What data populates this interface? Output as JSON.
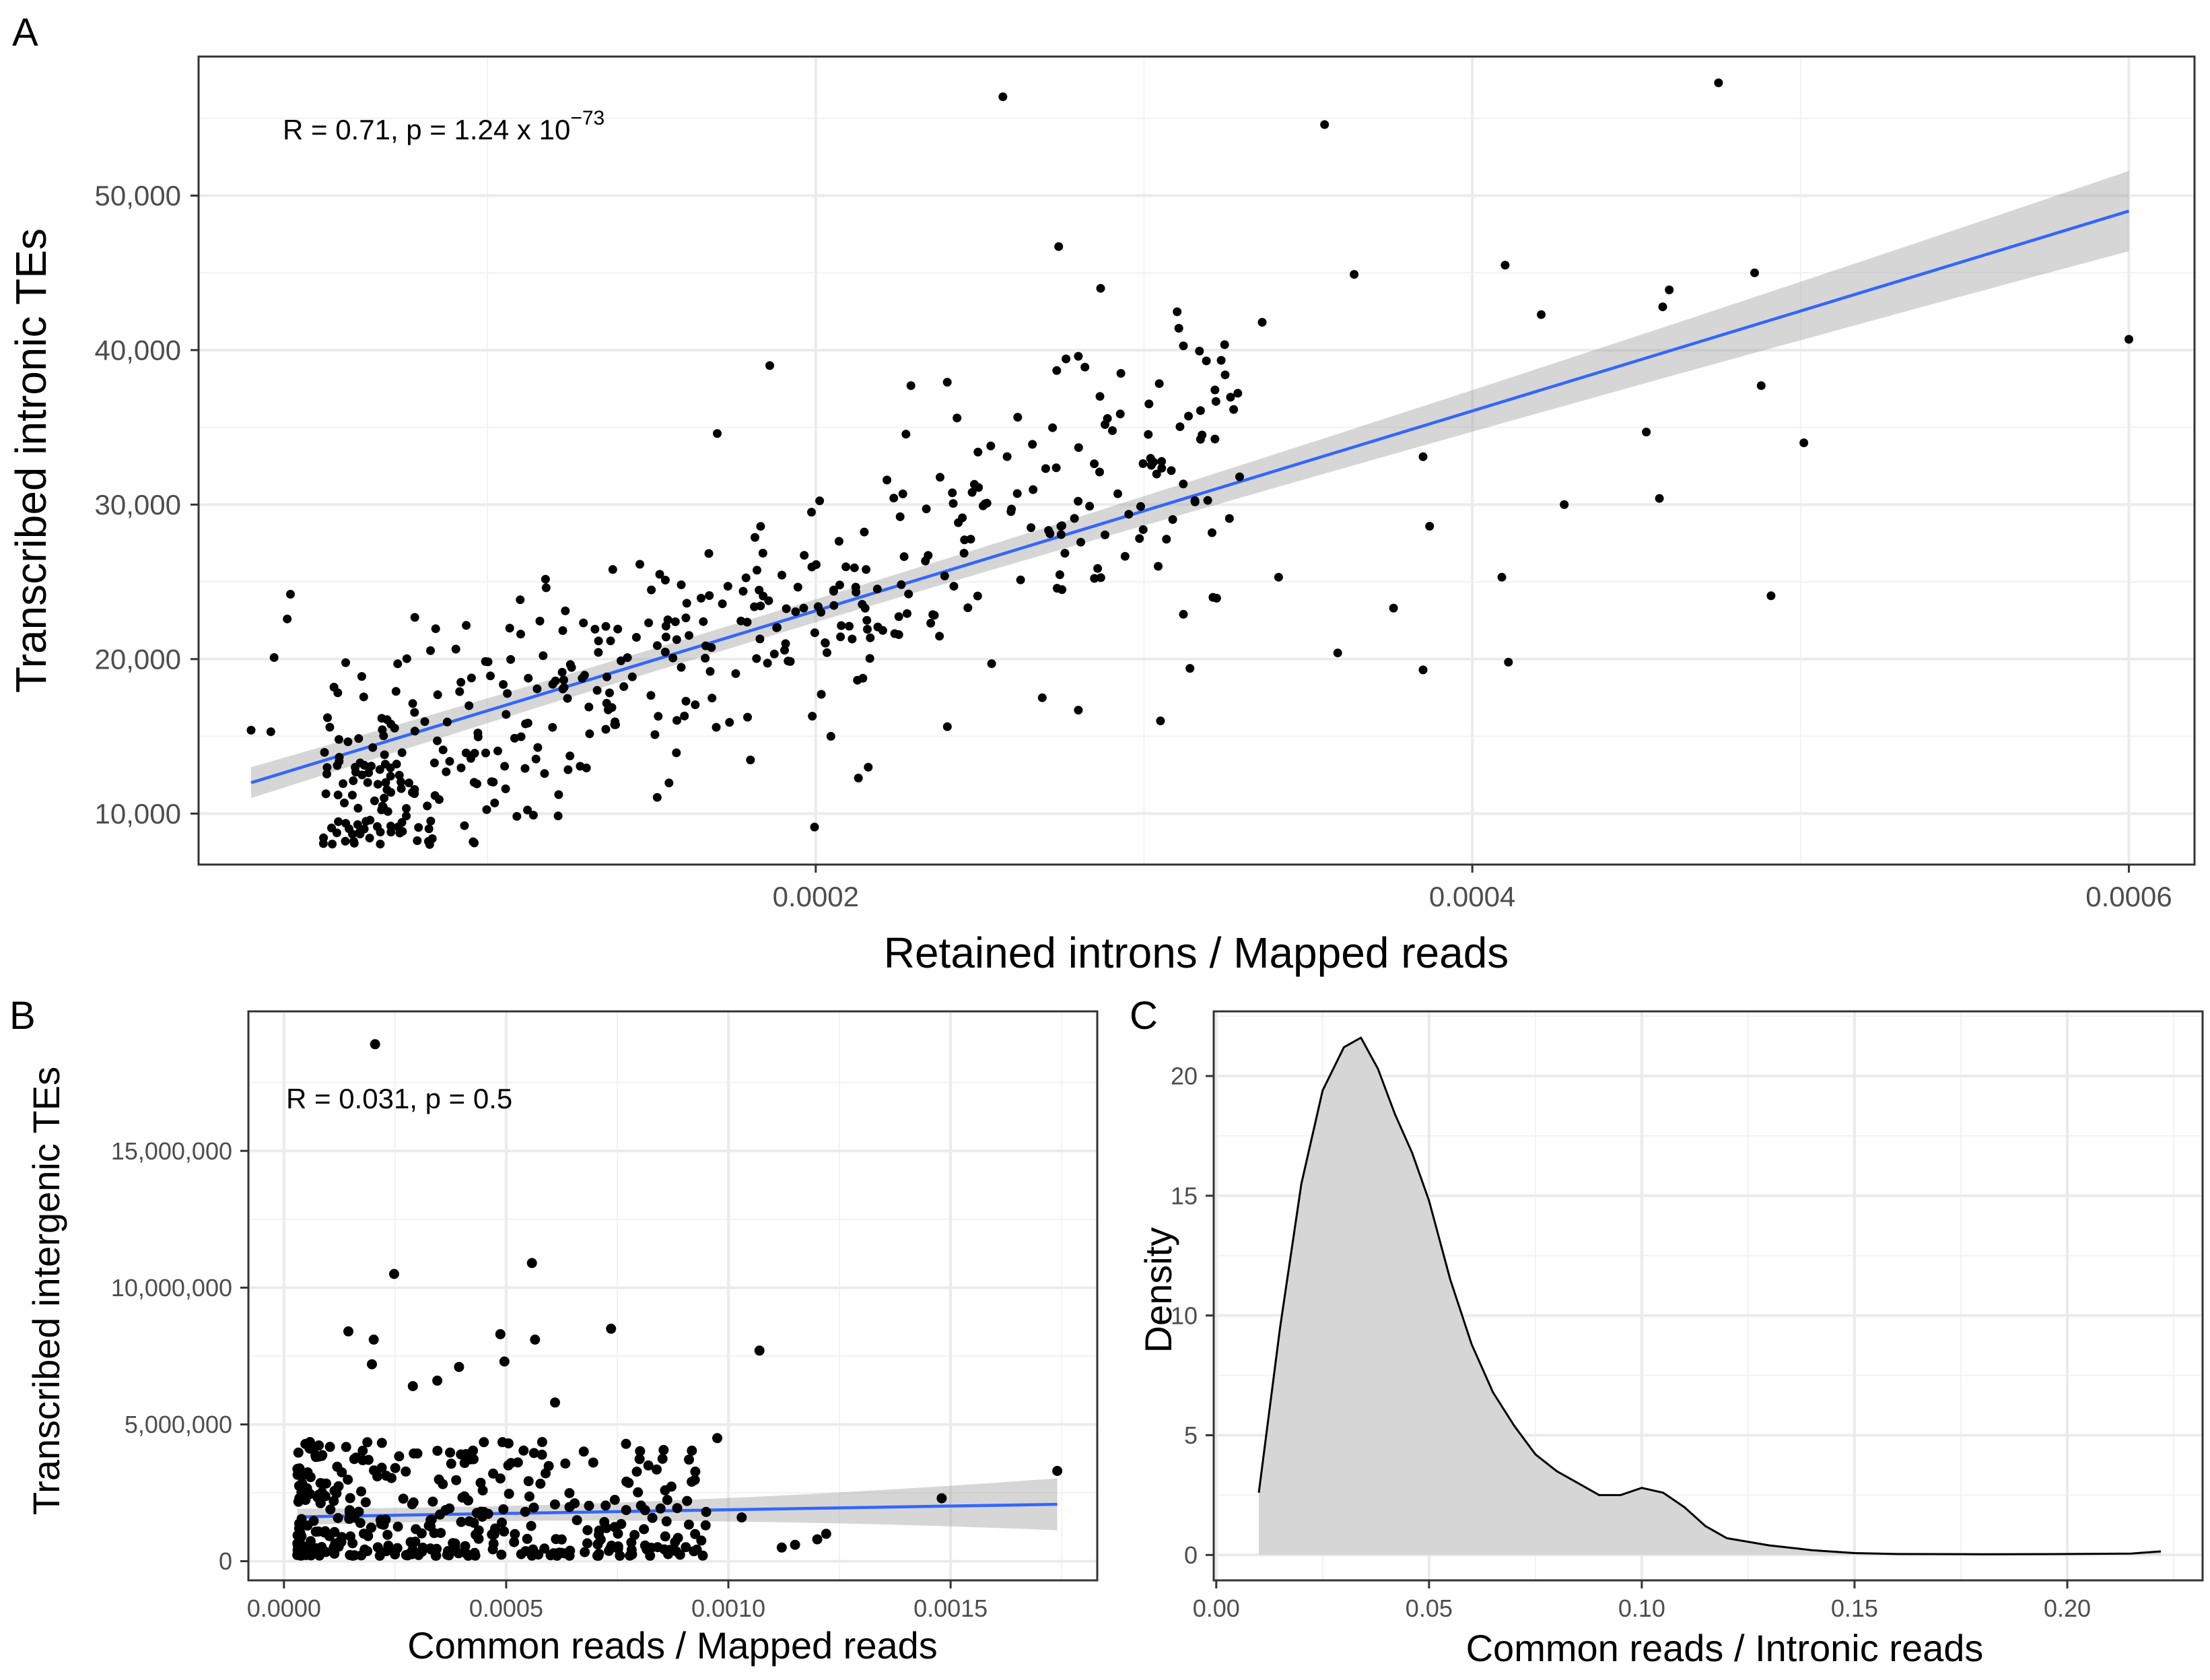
{
  "panel_labels": [
    "A",
    "B",
    "C"
  ],
  "chart_data": [
    {
      "panel": "A",
      "type": "scatter",
      "xlabel": "Retained introns / Mapped reads",
      "ylabel": "Transcribed intronic TEs",
      "xlim": [
        1.2e-05,
        0.00062
      ],
      "ylim": [
        6700,
        59000
      ],
      "xticks": [
        0.0002,
        0.0004,
        0.0006
      ],
      "xtick_labels": [
        "0.0002",
        "0.0004",
        "0.0006"
      ],
      "yticks": [
        10000,
        20000,
        30000,
        40000,
        50000
      ],
      "ytick_labels": [
        "10,000",
        "20,000",
        "30,000",
        "40,000",
        "50,000"
      ],
      "annotation": {
        "text": "R = 0.71, p = 1.24 x 10",
        "exponent": "−73"
      },
      "fit": {
        "x0": 2.8e-05,
        "y0": 12000,
        "x1": 0.0006,
        "y1": 49000,
        "ci_start": 1000,
        "ci_end": 2600,
        "ci_min": 550
      },
      "highlight_points": [
        [
          2.8e-05,
          15400
        ],
        [
          3.4e-05,
          15300
        ],
        [
          3.5e-05,
          20100
        ],
        [
          4e-05,
          24200
        ],
        [
          3.9e-05,
          22600
        ],
        [
          6.3e-05,
          9500
        ],
        [
          8.2e-05,
          8200
        ],
        [
          7.9e-05,
          9100
        ],
        [
          9.6e-05,
          8100
        ],
        [
          0.000114,
          9900
        ],
        [
          0.00017,
          34600
        ],
        [
          0.000186,
          39000
        ],
        [
          0.000257,
          56400
        ],
        [
          0.000229,
          37700
        ],
        [
          0.000274,
          46700
        ],
        [
          0.00028,
          39600
        ],
        [
          0.000282,
          38900
        ],
        [
          0.00028,
          16700
        ],
        [
          0.000269,
          17500
        ],
        [
          0.000213,
          12300
        ],
        [
          0.000216,
          13000
        ],
        [
          0.000355,
          54600
        ],
        [
          0.000364,
          44900
        ],
        [
          0.000336,
          41800
        ],
        [
          0.000341,
          25300
        ],
        [
          0.000359,
          20400
        ],
        [
          0.000376,
          23300
        ],
        [
          0.000385,
          19300
        ],
        [
          0.00041,
          45500
        ],
        [
          0.000421,
          42300
        ],
        [
          0.000409,
          25300
        ],
        [
          0.000411,
          19800
        ],
        [
          0.000428,
          30000
        ],
        [
          0.000453,
          34700
        ],
        [
          0.000457,
          30400
        ],
        [
          0.000458,
          42800
        ],
        [
          0.00046,
          43900
        ],
        [
          0.000475,
          57300
        ],
        [
          0.000486,
          45000
        ],
        [
          0.000488,
          37700
        ],
        [
          0.000491,
          24100
        ],
        [
          0.000501,
          34000
        ],
        [
          0.0006,
          40700
        ],
        [
          0.000385,
          33100
        ],
        [
          0.000387,
          28600
        ],
        [
          0.000319,
          39300
        ],
        [
          0.000326,
          29100
        ],
        [
          0.000321,
          24000
        ],
        [
          0.000314,
          19400
        ],
        [
          0.000312,
          22900
        ],
        [
          0.000305,
          16000
        ],
        [
          0.000302,
          33000
        ],
        [
          0.000292,
          30700
        ],
        [
          0.000266,
          33900
        ],
        [
          0.000275,
          24500
        ]
      ],
      "cloud": {
        "n": 450,
        "seed": 11,
        "x_range": [
          5e-05,
          0.00033
        ],
        "slope": 85000000,
        "intercept": 6500,
        "noise_sd": 3800,
        "y_min": 8000
      }
    },
    {
      "panel": "B",
      "type": "scatter",
      "xlabel": "Common reads / Mapped reads",
      "ylabel": "Transcribed intergenic TEs",
      "xlim": [
        -8e-05,
        0.00183
      ],
      "ylim": [
        -700000,
        20100000
      ],
      "xticks": [
        0,
        0.0005,
        0.001,
        0.0015
      ],
      "xtick_labels": [
        "0.0000",
        "0.0005",
        "0.0010",
        "0.0015"
      ],
      "yticks": [
        0,
        5000000,
        10000000,
        15000000
      ],
      "ytick_labels": [
        "0",
        "5,000,000",
        "10,000,000",
        "15,000,000"
      ],
      "annotation": {
        "text": "R = 0.031, p = 0.5",
        "exponent": ""
      },
      "fit": {
        "x0": 3e-05,
        "y0": 1620000,
        "x1": 0.00174,
        "y1": 2080000,
        "ci_start": 300000,
        "ci_end": 950000,
        "ci_min": 220000
      },
      "highlight_points": [
        [
          0.000205,
          18900000
        ],
        [
          0.000248,
          10500000
        ],
        [
          0.000558,
          10900000
        ],
        [
          0.000145,
          8400000
        ],
        [
          0.000202,
          8100000
        ],
        [
          0.000487,
          8300000
        ],
        [
          0.000496,
          7300000
        ],
        [
          0.000565,
          8100000
        ],
        [
          0.000394,
          7100000
        ],
        [
          0.000736,
          8500000
        ],
        [
          0.00107,
          7700000
        ],
        [
          0.000975,
          4500000
        ],
        [
          0.00061,
          5800000
        ],
        [
          0.00082,
          3500000
        ],
        [
          0.000345,
          6600000
        ],
        [
          0.00029,
          6400000
        ],
        [
          0.0012,
          800000
        ],
        [
          0.00122,
          1000000
        ],
        [
          0.00112,
          500000
        ],
        [
          0.00115,
          600000
        ],
        [
          0.00148,
          2300000
        ],
        [
          0.00174,
          3300000
        ],
        [
          0.00103,
          1600000
        ],
        [
          0.00095,
          1800000
        ],
        [
          0.00088,
          700000
        ],
        [
          0.000198,
          7200000
        ],
        [
          0.00021,
          3100000
        ]
      ],
      "cloud": {
        "n": 360,
        "seed": 23,
        "x_range": [
          3e-05,
          0.00095
        ],
        "y_max": 4400000
      }
    },
    {
      "panel": "C",
      "type": "area",
      "xlabel": "Common reads / Intronic reads",
      "ylabel": "Density",
      "xlim": [
        -0.0006,
        0.2318
      ],
      "ylim": [
        -1.06,
        22.7
      ],
      "xticks": [
        0,
        0.05,
        0.1,
        0.15,
        0.2
      ],
      "xtick_labels": [
        "0.00",
        "0.05",
        "0.10",
        "0.15",
        "0.20"
      ],
      "yticks": [
        0,
        5,
        10,
        15,
        20
      ],
      "ytick_labels": [
        "0",
        "5",
        "10",
        "15",
        "20"
      ],
      "x": [
        0.01,
        0.015,
        0.02,
        0.025,
        0.03,
        0.034,
        0.038,
        0.042,
        0.046,
        0.05,
        0.055,
        0.06,
        0.065,
        0.07,
        0.075,
        0.08,
        0.085,
        0.09,
        0.095,
        0.1,
        0.105,
        0.11,
        0.115,
        0.12,
        0.13,
        0.14,
        0.15,
        0.16,
        0.18,
        0.2,
        0.215,
        0.222
      ],
      "y": [
        2.6,
        9.5,
        15.5,
        19.4,
        21.2,
        21.6,
        20.3,
        18.4,
        16.8,
        14.8,
        11.5,
        8.8,
        6.8,
        5.4,
        4.2,
        3.5,
        3.0,
        2.5,
        2.5,
        2.8,
        2.6,
        2.0,
        1.2,
        0.7,
        0.4,
        0.2,
        0.08,
        0.04,
        0.03,
        0.04,
        0.06,
        0.15
      ]
    }
  ]
}
